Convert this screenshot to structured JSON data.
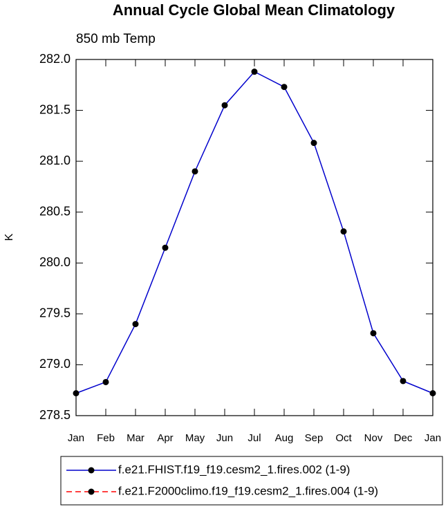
{
  "chart_data": {
    "type": "line",
    "title": "Annual Cycle Global Mean Climatology",
    "subtitle": "850 mb Temp",
    "y_label": "K",
    "categories": [
      "Jan",
      "Feb",
      "Mar",
      "Apr",
      "May",
      "Jun",
      "Jul",
      "Aug",
      "Sep",
      "Oct",
      "Nov",
      "Dec",
      "Jan"
    ],
    "series": [
      {
        "name": "f.e21.FHIST.f19_f19.cesm2_1.fires.002 (1-9)",
        "color": "#0000cc",
        "dash": false,
        "marker_color": "#000000",
        "values": [
          278.72,
          278.83,
          279.4,
          280.15,
          280.9,
          281.55,
          281.88,
          281.73,
          281.18,
          280.31,
          279.31,
          278.84,
          278.72
        ]
      },
      {
        "name": "f.e21.F2000climo.f19_f19.cesm2_1.fires.004 (1-9)",
        "color": "#ff0000",
        "dash": true,
        "marker_color": "#000000",
        "values": [
          null,
          null,
          null,
          null,
          null,
          null,
          null,
          null,
          null,
          null,
          null,
          null,
          null
        ]
      }
    ],
    "ylim": [
      278.5,
      282.0
    ],
    "yticks": [
      278.5,
      {
        "value": 279,
        "label": "279.0"
      },
      279.5,
      {
        "value": 280,
        "label": "280.0"
      },
      280.5,
      {
        "value": 281,
        "label": "281.0"
      },
      281.5,
      {
        "value": 282,
        "label": "282.0"
      }
    ],
    "grid": false
  }
}
